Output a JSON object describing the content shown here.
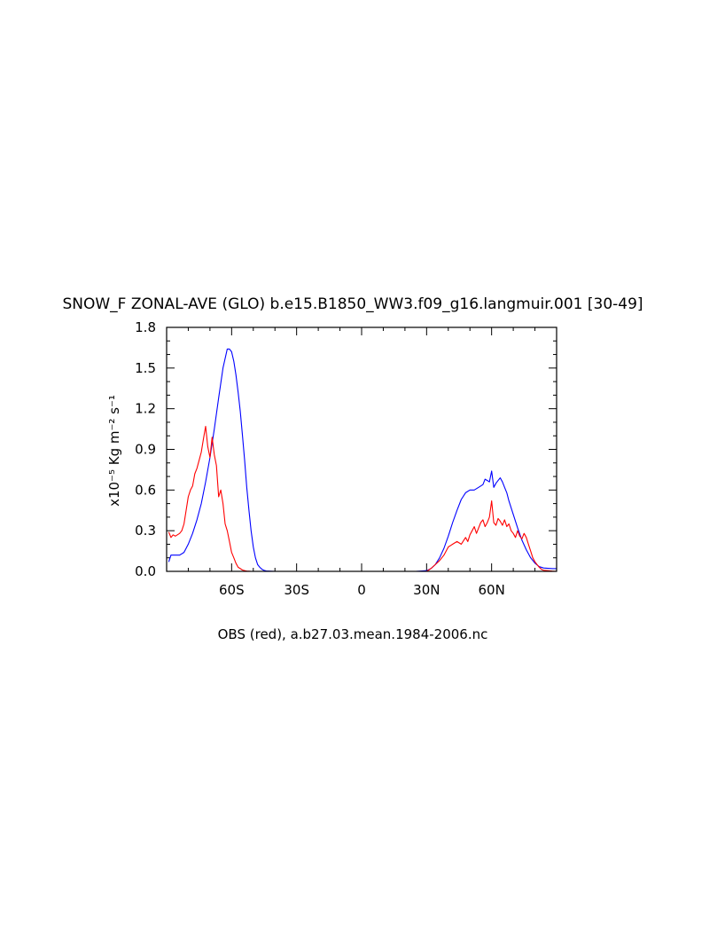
{
  "chart_data": {
    "type": "line",
    "title": "SNOW_F ZONAL-AVE (GLO) b.e15.B1850_WW3.f09_g16.langmuir.001 [30-49]",
    "ylabel": "x10⁻⁵ Kg m⁻² s⁻¹",
    "xlabel": "OBS (red), a.b27.03.mean.1984-2006.nc",
    "xlim": [
      -90,
      90
    ],
    "ylim": [
      0.0,
      1.8
    ],
    "x_ticks": [
      {
        "value": -60,
        "label": "60S"
      },
      {
        "value": -30,
        "label": "30S"
      },
      {
        "value": 0,
        "label": "0"
      },
      {
        "value": 30,
        "label": "30N"
      },
      {
        "value": 60,
        "label": "60N"
      }
    ],
    "y_ticks": [
      {
        "value": 0.0,
        "label": "0.0"
      },
      {
        "value": 0.3,
        "label": "0.3"
      },
      {
        "value": 0.6,
        "label": "0.6"
      },
      {
        "value": 0.9,
        "label": "0.9"
      },
      {
        "value": 1.2,
        "label": "1.2"
      },
      {
        "value": 1.5,
        "label": "1.5"
      },
      {
        "value": 1.8,
        "label": "1.8"
      }
    ],
    "grid": false,
    "series": [
      {
        "color": "#0000ff",
        "x": [
          -89,
          -88,
          -86,
          -84,
          -82,
          -80,
          -78,
          -76,
          -74,
          -72,
          -70,
          -68,
          -66,
          -64,
          -62,
          -61,
          -60,
          -59,
          -58,
          -57,
          -56,
          -55,
          -54,
          -53,
          -52,
          -51,
          -50,
          -49,
          -48,
          -47,
          -46,
          -45,
          -44,
          -42,
          -40,
          -35,
          -30,
          -20,
          -10,
          0,
          10,
          20,
          25,
          30,
          32,
          34,
          36,
          38,
          40,
          42,
          44,
          46,
          48,
          50,
          52,
          54,
          56,
          57,
          58,
          59,
          60,
          61,
          62,
          63,
          64,
          65,
          66,
          67,
          68,
          70,
          72,
          74,
          76,
          78,
          80,
          82,
          84,
          86,
          88,
          90
        ],
        "y": [
          0.07,
          0.12,
          0.12,
          0.12,
          0.14,
          0.2,
          0.28,
          0.38,
          0.5,
          0.66,
          0.84,
          1.05,
          1.28,
          1.5,
          1.64,
          1.64,
          1.62,
          1.55,
          1.45,
          1.32,
          1.18,
          1.0,
          0.82,
          0.62,
          0.45,
          0.3,
          0.18,
          0.1,
          0.05,
          0.03,
          0.015,
          0.007,
          0.003,
          0.001,
          0.0,
          0.0,
          0.0,
          0.0,
          0.0,
          0.0,
          0.0,
          0.0,
          0.0,
          0.005,
          0.02,
          0.05,
          0.1,
          0.17,
          0.26,
          0.36,
          0.45,
          0.53,
          0.58,
          0.6,
          0.6,
          0.62,
          0.64,
          0.68,
          0.67,
          0.66,
          0.74,
          0.62,
          0.65,
          0.67,
          0.69,
          0.66,
          0.62,
          0.58,
          0.52,
          0.42,
          0.32,
          0.23,
          0.16,
          0.1,
          0.06,
          0.035,
          0.025,
          0.022,
          0.02,
          0.02
        ]
      },
      {
        "color": "#ff0000",
        "x": [
          -89,
          -88,
          -87,
          -86,
          -85,
          -84,
          -83,
          -82,
          -81,
          -80,
          -79,
          -78,
          -77,
          -76,
          -75,
          -74,
          -73,
          -72,
          -71,
          -70,
          -69,
          -68,
          -67,
          -66,
          -65,
          -64,
          -63,
          -62,
          -61,
          -60,
          -59,
          -58,
          -57,
          -56,
          -55,
          -54,
          -53,
          -52,
          -51,
          -50,
          -49,
          -48,
          -47,
          -46,
          -45,
          -44,
          -42,
          -40,
          -30,
          -20,
          -10,
          0,
          10,
          20,
          25,
          30,
          32,
          34,
          36,
          38,
          40,
          42,
          44,
          46,
          48,
          49,
          50,
          51,
          52,
          53,
          54,
          55,
          56,
          57,
          58,
          59,
          60,
          61,
          62,
          63,
          64,
          65,
          66,
          67,
          68,
          69,
          70,
          71,
          72,
          73,
          74,
          75,
          76,
          77,
          78,
          79,
          80,
          81,
          82,
          83,
          84,
          86,
          88,
          90
        ],
        "y": [
          0.29,
          0.25,
          0.27,
          0.26,
          0.27,
          0.28,
          0.3,
          0.35,
          0.45,
          0.55,
          0.6,
          0.63,
          0.72,
          0.76,
          0.82,
          0.88,
          0.98,
          1.07,
          0.92,
          0.84,
          0.99,
          0.86,
          0.78,
          0.55,
          0.6,
          0.5,
          0.35,
          0.3,
          0.22,
          0.14,
          0.1,
          0.06,
          0.03,
          0.02,
          0.01,
          0.005,
          0.002,
          0.001,
          0.0,
          0.0,
          0.0,
          0.0,
          0.0,
          0.0,
          0.0,
          0.0,
          0.0,
          0.0,
          0.0,
          0.0,
          0.0,
          0.0,
          0.0,
          0.0,
          0.0,
          0.0,
          0.02,
          0.05,
          0.08,
          0.12,
          0.18,
          0.2,
          0.22,
          0.2,
          0.25,
          0.22,
          0.27,
          0.3,
          0.33,
          0.28,
          0.32,
          0.36,
          0.38,
          0.33,
          0.36,
          0.4,
          0.52,
          0.36,
          0.34,
          0.39,
          0.37,
          0.34,
          0.38,
          0.33,
          0.35,
          0.3,
          0.28,
          0.25,
          0.3,
          0.26,
          0.24,
          0.28,
          0.25,
          0.2,
          0.15,
          0.1,
          0.07,
          0.05,
          0.03,
          0.015,
          0.008,
          0.005,
          0.002,
          0.0
        ]
      }
    ]
  }
}
